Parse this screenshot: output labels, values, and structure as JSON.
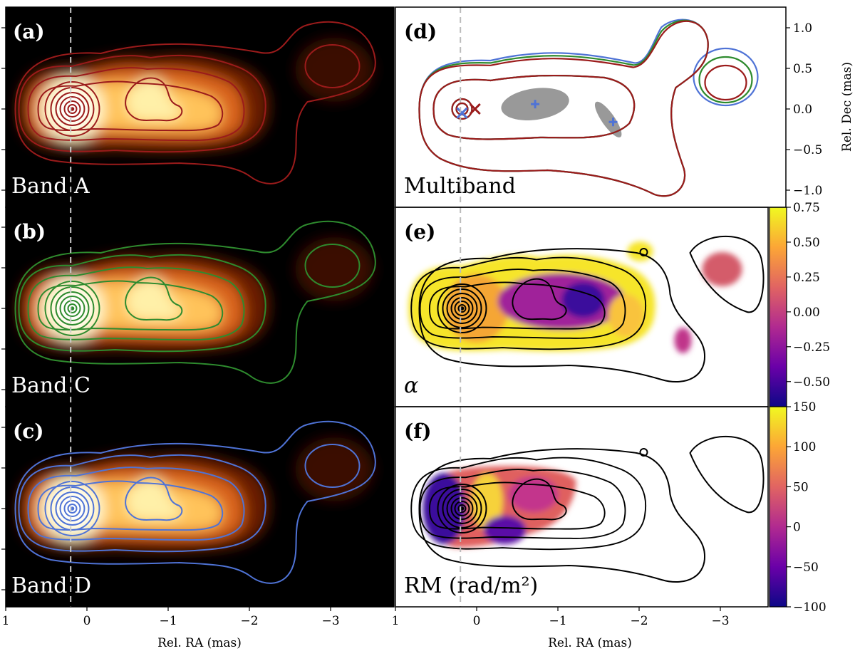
{
  "chart_data": {
    "type": "contour",
    "xlabel": "Rel. RA (mas)",
    "ylabel_right": "Rel. Dec (mas)",
    "xlim": [
      1,
      -3.8
    ],
    "x_ticks": [
      {
        "v": 1,
        "label": "1"
      },
      {
        "v": 0,
        "label": "0"
      },
      {
        "v": -1,
        "label": "−1"
      },
      {
        "v": -2,
        "label": "−2"
      },
      {
        "v": -3,
        "label": "−3"
      }
    ],
    "y_ticks": [
      {
        "v": 1.0,
        "label": "1.0"
      },
      {
        "v": 0.5,
        "label": "0.5"
      },
      {
        "v": 0.0,
        "label": "0.0"
      },
      {
        "v": -0.5,
        "label": "−0.5"
      },
      {
        "v": -1.0,
        "label": "−1.0"
      }
    ],
    "reference_line_ra": 0.2,
    "core_ra": 0.18,
    "panels": [
      {
        "id": "a",
        "label": "(a)",
        "band": "Band A",
        "contour_color": "#9b1b1b"
      },
      {
        "id": "b",
        "label": "(b)",
        "band": "Band C",
        "contour_color": "#2e8b2e"
      },
      {
        "id": "c",
        "label": "(c)",
        "band": "Band D",
        "contour_color": "#4f73d6"
      },
      {
        "id": "d",
        "label": "(d)",
        "band": "Multiband",
        "components": [
          {
            "ra": 0.18,
            "dec": -0.05,
            "marker": "x",
            "color": "#4f73d6"
          },
          {
            "ra": 0.02,
            "dec": 0.0,
            "marker": "x",
            "color": "#9b1b1b"
          },
          {
            "ra": -0.72,
            "dec": 0.06,
            "marker": "+",
            "color": "#4f73d6"
          },
          {
            "ra": -1.68,
            "dec": -0.16,
            "marker": "+",
            "color": "#4f73d6"
          }
        ]
      },
      {
        "id": "e",
        "label": "(e)",
        "band": "α",
        "colorbar": {
          "ticks": [
            "0.75",
            "0.50",
            "0.25",
            "0.00",
            "−0.25",
            "−0.50"
          ],
          "values": [
            0.75,
            0.5,
            0.25,
            0.0,
            -0.25,
            -0.5
          ],
          "min": -0.68,
          "max": 0.75
        }
      },
      {
        "id": "f",
        "label": "(f)",
        "band": "RM (rad/m²)",
        "colorbar": {
          "ticks": [
            "150",
            "100",
            "50",
            "0",
            "−50",
            "−100"
          ],
          "values": [
            150,
            100,
            50,
            0,
            -50,
            -100
          ],
          "min": -100,
          "max": 150
        }
      }
    ]
  }
}
